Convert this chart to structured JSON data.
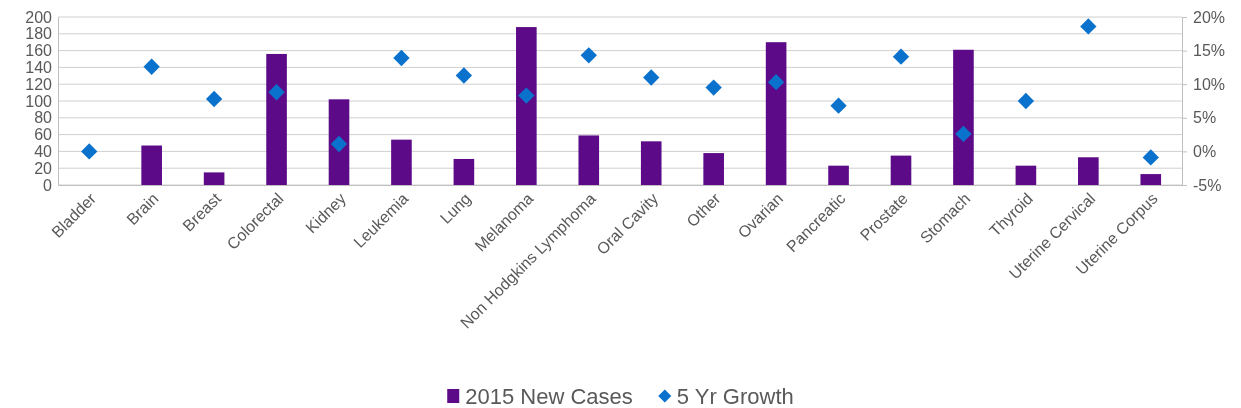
{
  "chart_data": {
    "type": "bar",
    "categories": [
      "Bladder",
      "Brain",
      "Breast",
      "Colorectal",
      "Kidney",
      "Leukemia",
      "Lung",
      "Melanoma",
      "Non Hodgkins Lymphoma",
      "Oral Cavity",
      "Other",
      "Ovarian",
      "Pancreatic",
      "Prostate",
      "Stomach",
      "Thyroid",
      "Uterine Cervical",
      "Uterine Corpus"
    ],
    "series": [
      {
        "name": "2015 New Cases",
        "color": "#5c0a87",
        "values": [
          0,
          47,
          15,
          156,
          102,
          54,
          31,
          188,
          59,
          52,
          38,
          170,
          23,
          35,
          161,
          23,
          33,
          13
        ]
      },
      {
        "name": "5 Yr Growth",
        "type": "scatter",
        "axis": "y2",
        "color": "#0a72cc",
        "values": [
          0,
          12.6,
          7.8,
          8.8,
          1.1,
          13.9,
          11.3,
          8.3,
          14.3,
          11,
          9.5,
          10.3,
          6.8,
          14.1,
          2.6,
          7.5,
          18.6,
          -0.9
        ]
      }
    ],
    "ylim": [
      0,
      200
    ],
    "yticks": [
      0,
      20,
      40,
      60,
      80,
      100,
      120,
      140,
      160,
      180,
      200
    ],
    "y2lim": [
      -5,
      20
    ],
    "y2ticks": [
      {
        "value": -5,
        "label": "-5%"
      },
      {
        "value": 0,
        "label": "0%"
      },
      {
        "value": 5,
        "label": "5%"
      },
      {
        "value": 10,
        "label": "10%"
      },
      {
        "value": 15,
        "label": "15%"
      },
      {
        "value": 20,
        "label": "20%"
      }
    ],
    "grid": "y",
    "legend": "bottom",
    "marker": "diamond"
  }
}
